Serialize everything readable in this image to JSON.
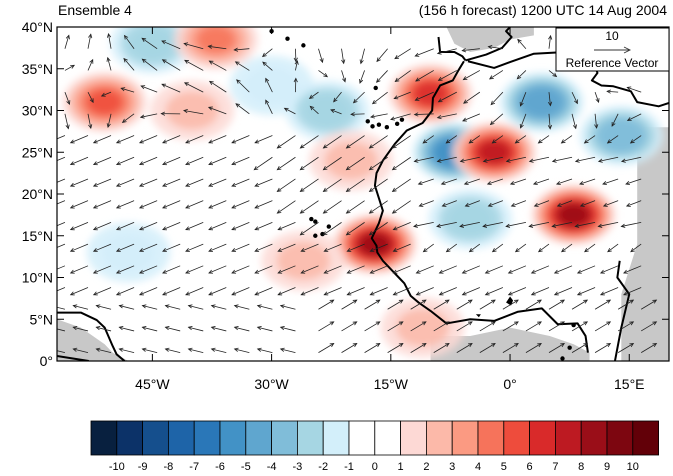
{
  "header": {
    "left_title": "Ensemble 4",
    "right_title": "(156 h forecast) 1200 UTC 14 Aug 2004"
  },
  "map": {
    "lon_range": [
      -57,
      20
    ],
    "lat_range": [
      0,
      40
    ],
    "lon_ticks": [
      {
        "value": -45,
        "label": "45°W"
      },
      {
        "value": -30,
        "label": "30°W"
      },
      {
        "value": -15,
        "label": "15°W"
      },
      {
        "value": 0,
        "label": "0°"
      },
      {
        "value": 15,
        "label": "15°E"
      }
    ],
    "lat_ticks": [
      {
        "value": 0,
        "label": "0°"
      },
      {
        "value": 5,
        "label": "5°N"
      },
      {
        "value": 10,
        "label": "10°N"
      },
      {
        "value": 15,
        "label": "15°N"
      },
      {
        "value": 20,
        "label": "20°N"
      },
      {
        "value": 25,
        "label": "25°N"
      },
      {
        "value": 30,
        "label": "30°N"
      },
      {
        "value": 35,
        "label": "35°N"
      },
      {
        "value": 40,
        "label": "40°N"
      }
    ],
    "reference_vector": {
      "magnitude": "10",
      "label": "Reference Vector"
    },
    "missing_color": "#c8c8c8",
    "coast_color": "#000000",
    "vector_color": "#222222"
  },
  "colorbar": {
    "labels": [
      "-10",
      "-9",
      "-8",
      "-7",
      "-6",
      "-5",
      "-4",
      "-3",
      "-2",
      "-1",
      "0",
      "1",
      "2",
      "3",
      "4",
      "5",
      "6",
      "7",
      "8",
      "9",
      "10"
    ],
    "colors": [
      "#08203f",
      "#0c3268",
      "#154f8d",
      "#1e64a8",
      "#2a77b8",
      "#4292c6",
      "#5fa6cf",
      "#80bdd9",
      "#a6d6e3",
      "#d3effa",
      "#ffffff",
      "#ffffff",
      "#fdd9d5",
      "#fcb9a9",
      "#fb9a82",
      "#f6735b",
      "#ee4c3c",
      "#d92a2a",
      "#bd1a22",
      "#9a0e18",
      "#7d0610",
      "#620008"
    ]
  },
  "chart_data": {
    "type": "heatmap",
    "title": "Ensemble 4",
    "subtitle": "(156 h forecast) 1200 UTC 14 Aug 2004",
    "xlabel": "",
    "ylabel": "",
    "xlim": [
      -57,
      20
    ],
    "ylim": [
      0,
      40
    ],
    "color_scale": [
      -10,
      10
    ],
    "anomalies": [
      {
        "lon": -51,
        "lat": 31,
        "value": 5
      },
      {
        "lon": -45,
        "lat": 38,
        "value": -3
      },
      {
        "lon": -37,
        "lat": 38.5,
        "value": 4
      },
      {
        "lon": -40,
        "lat": 30,
        "value": 2
      },
      {
        "lon": -30,
        "lat": 33,
        "value": -2
      },
      {
        "lon": -23,
        "lat": 30,
        "value": -3
      },
      {
        "lon": -20,
        "lat": 24,
        "value": 2
      },
      {
        "lon": -10,
        "lat": 32,
        "value": 6
      },
      {
        "lon": -7,
        "lat": 25,
        "value": -6
      },
      {
        "lon": -2,
        "lat": 25,
        "value": 7
      },
      {
        "lon": 8,
        "lat": 17.5,
        "value": 8
      },
      {
        "lon": 4,
        "lat": 31,
        "value": -5
      },
      {
        "lon": 14,
        "lat": 27,
        "value": -4
      },
      {
        "lon": -17,
        "lat": 14,
        "value": 8
      },
      {
        "lon": -26,
        "lat": 12,
        "value": 2
      },
      {
        "lon": -5,
        "lat": 17,
        "value": -3
      },
      {
        "lon": -11,
        "lat": 4,
        "value": 2
      },
      {
        "lon": -48,
        "lat": 13,
        "value": -2
      }
    ]
  }
}
